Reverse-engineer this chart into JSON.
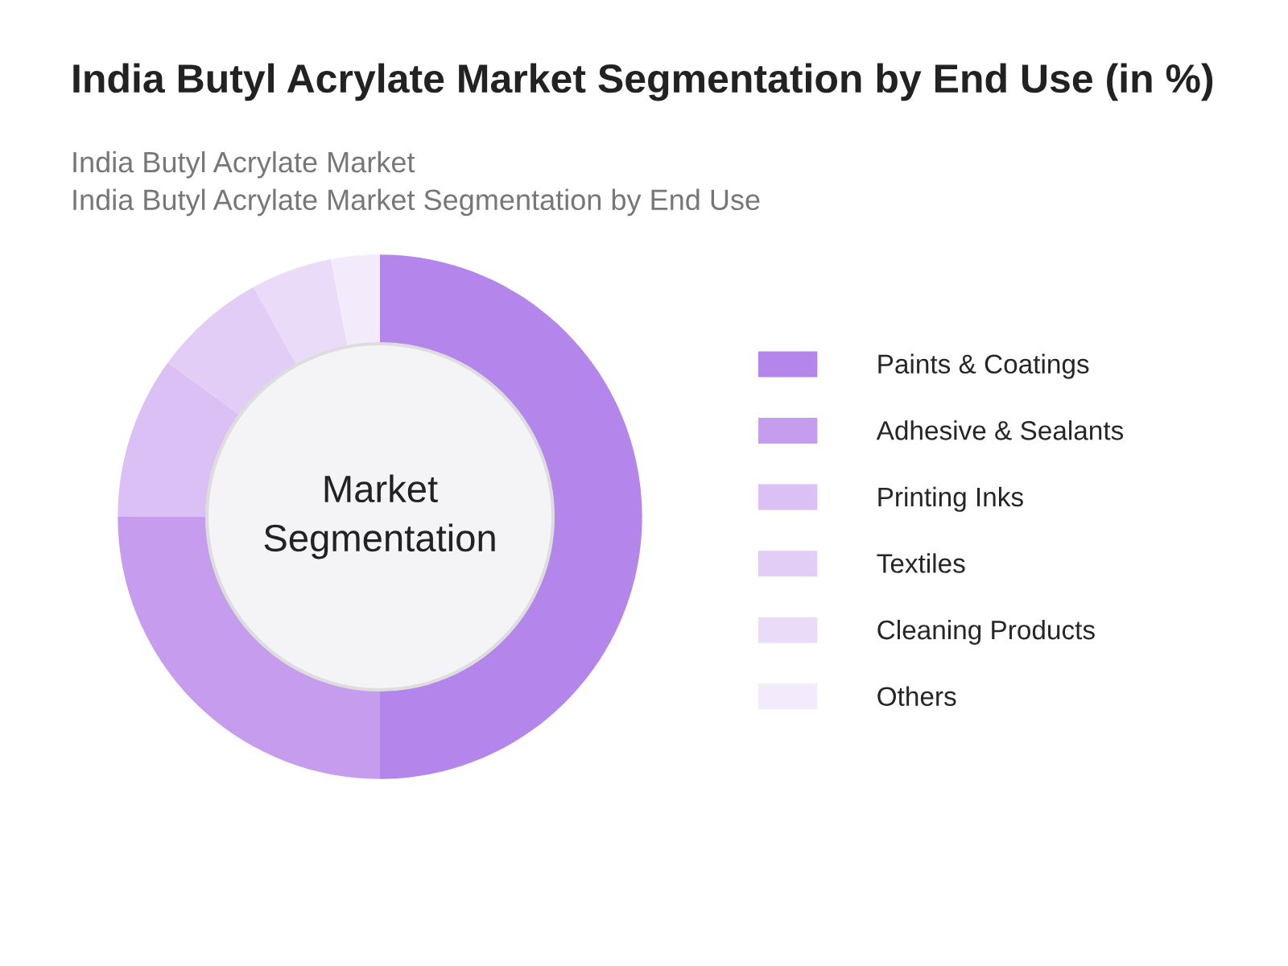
{
  "chart_data": {
    "type": "donut",
    "title": "India Butyl Acrylate Market Segmentation by End Use (in %)",
    "subtitle": "India Butyl Acrylate Market\nIndia Butyl Acrylate Market Segmentation by End Use",
    "categories": [
      "Paints & Coatings",
      "Adhesive & Sealants",
      "Printing Inks",
      "Textiles",
      "Cleaning Products",
      "Others"
    ],
    "values": [
      50,
      25,
      10,
      7,
      5,
      3
    ],
    "colors": [
      "#b485ea",
      "#c59cee",
      "#dbc0f5",
      "#e2cdf7",
      "#eadbf9",
      "#f3ebfc"
    ],
    "annotations": [
      "Market\nSegmentation"
    ],
    "legend": "right"
  }
}
